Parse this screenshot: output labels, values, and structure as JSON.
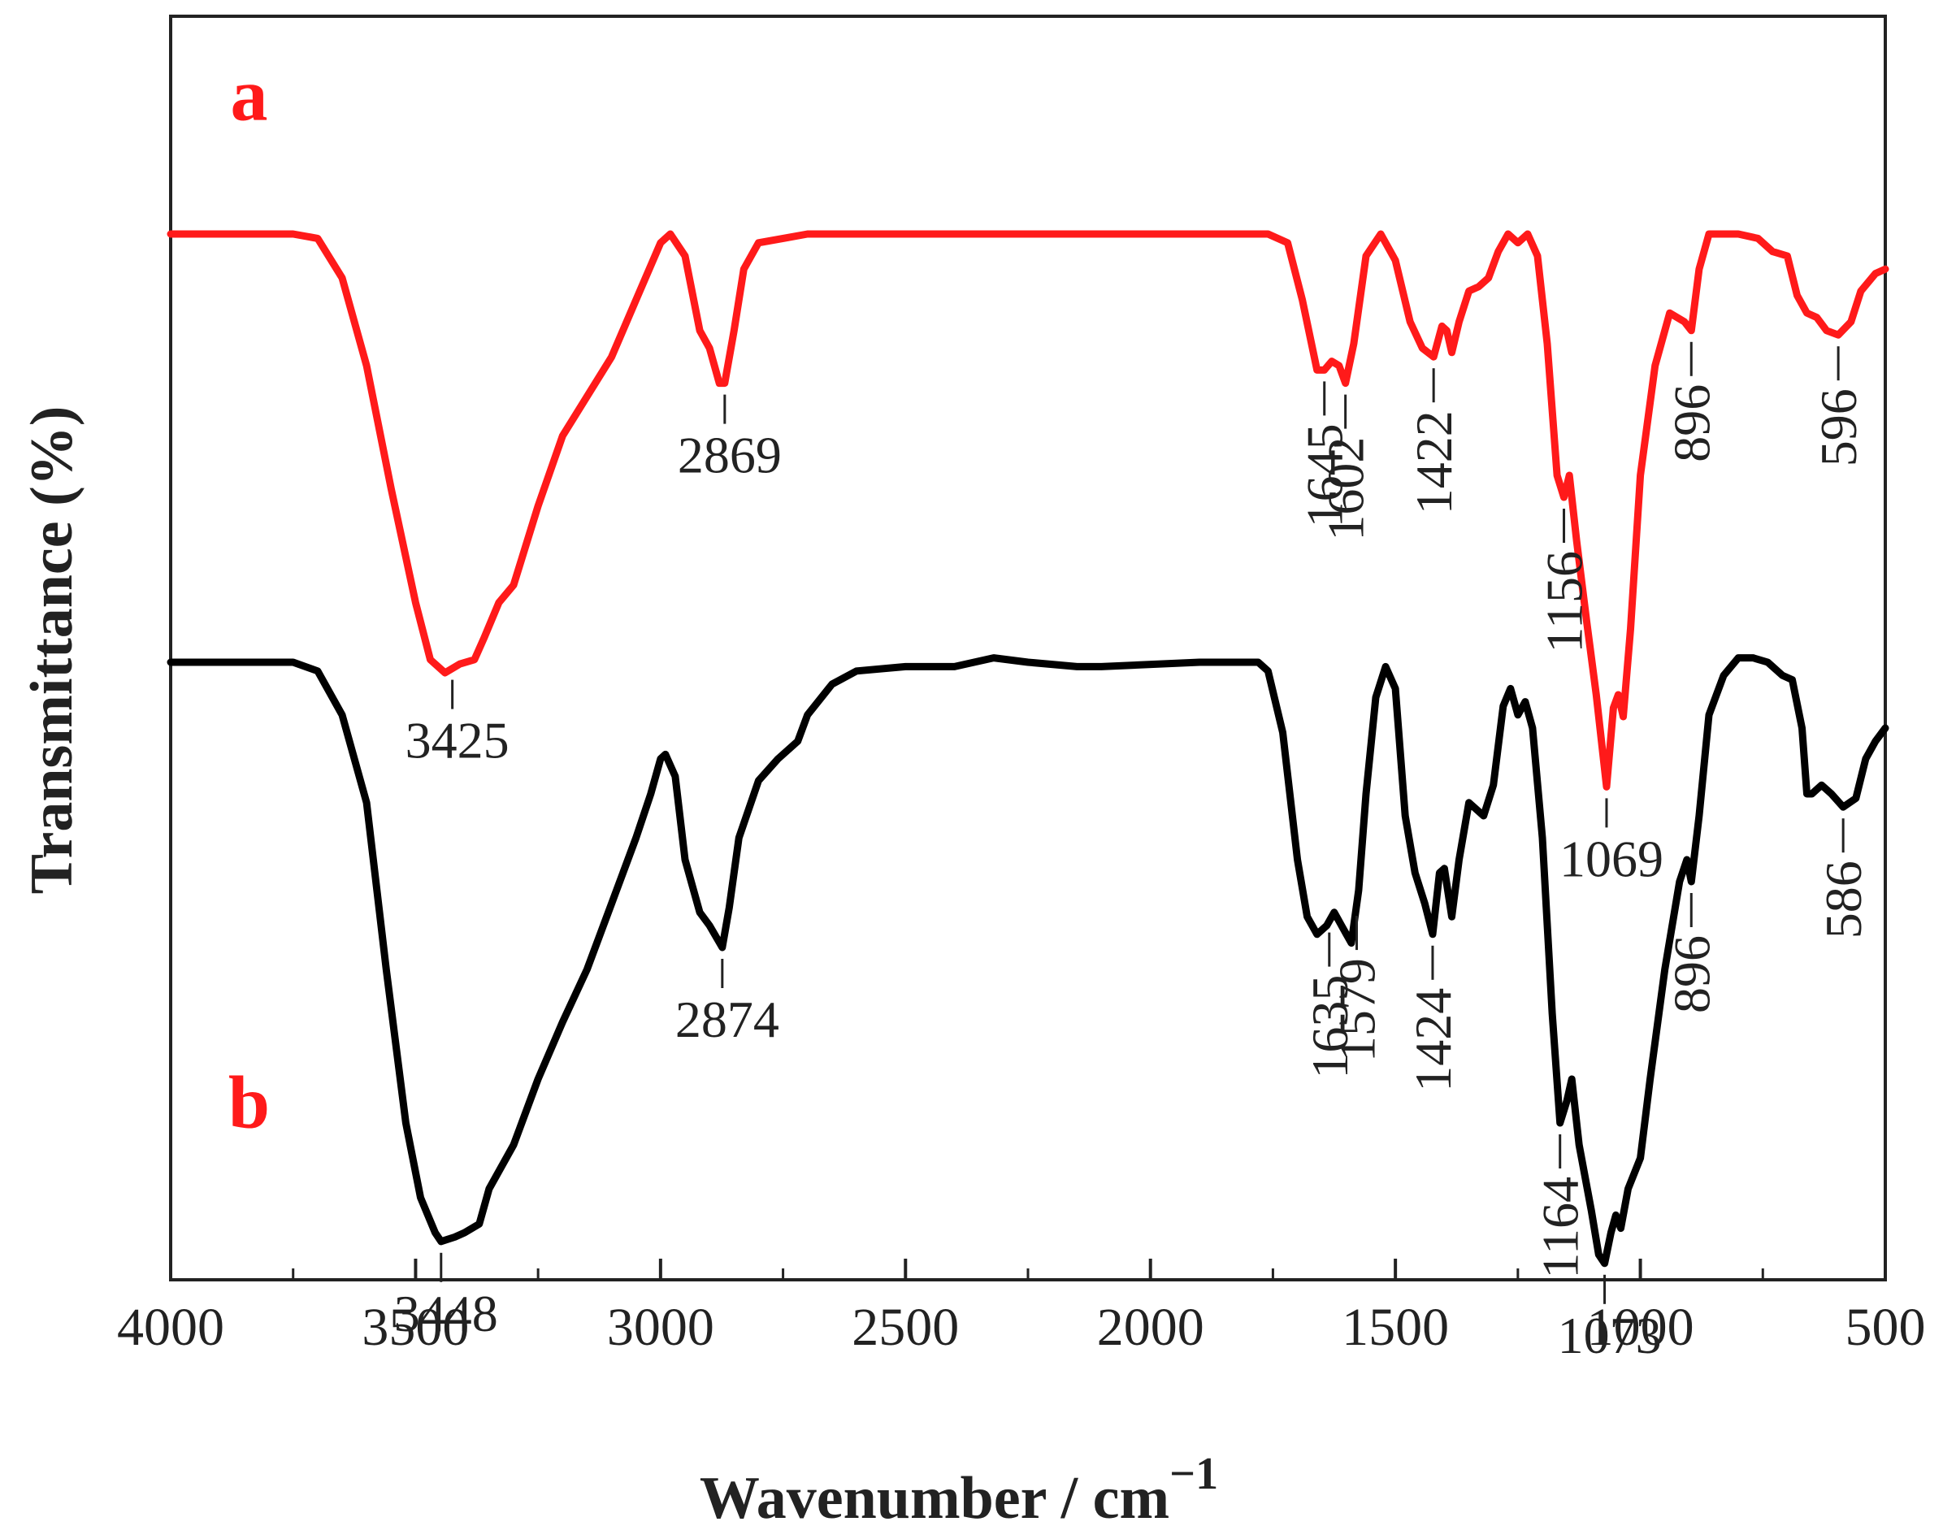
{
  "chart_data": {
    "type": "line",
    "title": "",
    "xlabel": "Wavenumber / cm",
    "xlabel_superscript": "−1",
    "ylabel": "Transmittance (%)",
    "xlim": [
      4000,
      500
    ],
    "x_reversed": true,
    "y_ticks_shown": false,
    "grid": false,
    "x_ticks": [
      "4000",
      "3500",
      "3000",
      "2500",
      "2000",
      "1500",
      "1000",
      "500"
    ],
    "series": [
      {
        "name": "a",
        "color": "#ff1a1a",
        "points": [
          [
            4000,
            0.0
          ],
          [
            3750,
            0.0
          ],
          [
            3700,
            -0.01
          ],
          [
            3650,
            -0.1
          ],
          [
            3600,
            -0.3
          ],
          [
            3550,
            -0.58
          ],
          [
            3500,
            -0.84
          ],
          [
            3470,
            -0.97
          ],
          [
            3440,
            -1.0
          ],
          [
            3410,
            -0.98
          ],
          [
            3380,
            -0.97
          ],
          [
            3360,
            -0.92
          ],
          [
            3330,
            -0.84
          ],
          [
            3300,
            -0.8
          ],
          [
            3250,
            -0.62
          ],
          [
            3200,
            -0.46
          ],
          [
            3100,
            -0.28
          ],
          [
            3050,
            -0.15
          ],
          [
            3000,
            -0.02
          ],
          [
            2980,
            0.0
          ],
          [
            2950,
            -0.05
          ],
          [
            2920,
            -0.22
          ],
          [
            2900,
            -0.26
          ],
          [
            2880,
            -0.34
          ],
          [
            2869,
            -0.34
          ],
          [
            2850,
            -0.22
          ],
          [
            2830,
            -0.08
          ],
          [
            2800,
            -0.02
          ],
          [
            2750,
            -0.01
          ],
          [
            2700,
            0.0
          ],
          [
            2500,
            0.0
          ],
          [
            2300,
            0.0
          ],
          [
            2100,
            0.0
          ],
          [
            1900,
            0.0
          ],
          [
            1760,
            0.0
          ],
          [
            1720,
            -0.02
          ],
          [
            1690,
            -0.15
          ],
          [
            1660,
            -0.31
          ],
          [
            1645,
            -0.31
          ],
          [
            1630,
            -0.29
          ],
          [
            1615,
            -0.3
          ],
          [
            1602,
            -0.34
          ],
          [
            1585,
            -0.25
          ],
          [
            1560,
            -0.05
          ],
          [
            1530,
            0.0
          ],
          [
            1500,
            -0.06
          ],
          [
            1470,
            -0.2
          ],
          [
            1445,
            -0.26
          ],
          [
            1422,
            -0.28
          ],
          [
            1405,
            -0.21
          ],
          [
            1395,
            -0.22
          ],
          [
            1385,
            -0.27
          ],
          [
            1370,
            -0.2
          ],
          [
            1350,
            -0.13
          ],
          [
            1330,
            -0.12
          ],
          [
            1310,
            -0.1
          ],
          [
            1290,
            -0.04
          ],
          [
            1270,
            0.0
          ],
          [
            1250,
            -0.02
          ],
          [
            1230,
            0.0
          ],
          [
            1210,
            -0.05
          ],
          [
            1190,
            -0.25
          ],
          [
            1170,
            -0.55
          ],
          [
            1156,
            -0.6
          ],
          [
            1145,
            -0.55
          ],
          [
            1130,
            -0.7
          ],
          [
            1110,
            -0.88
          ],
          [
            1090,
            -1.05
          ],
          [
            1069,
            -1.26
          ],
          [
            1055,
            -1.08
          ],
          [
            1045,
            -1.05
          ],
          [
            1035,
            -1.1
          ],
          [
            1020,
            -0.9
          ],
          [
            1000,
            -0.55
          ],
          [
            970,
            -0.3
          ],
          [
            940,
            -0.18
          ],
          [
            910,
            -0.2
          ],
          [
            896,
            -0.22
          ],
          [
            880,
            -0.08
          ],
          [
            860,
            0.0
          ],
          [
            800,
            0.0
          ],
          [
            760,
            -0.01
          ],
          [
            730,
            -0.04
          ],
          [
            700,
            -0.05
          ],
          [
            680,
            -0.14
          ],
          [
            660,
            -0.18
          ],
          [
            640,
            -0.19
          ],
          [
            620,
            -0.22
          ],
          [
            596,
            -0.23
          ],
          [
            570,
            -0.2
          ],
          [
            550,
            -0.13
          ],
          [
            520,
            -0.09
          ],
          [
            500,
            -0.08
          ]
        ]
      },
      {
        "name": "b",
        "color": "#000000",
        "points": [
          [
            4000,
            0.0
          ],
          [
            3750,
            0.0
          ],
          [
            3700,
            -0.02
          ],
          [
            3650,
            -0.12
          ],
          [
            3600,
            -0.32
          ],
          [
            3560,
            -0.7
          ],
          [
            3520,
            -1.05
          ],
          [
            3490,
            -1.22
          ],
          [
            3460,
            -1.3
          ],
          [
            3448,
            -1.32
          ],
          [
            3420,
            -1.31
          ],
          [
            3400,
            -1.3
          ],
          [
            3370,
            -1.28
          ],
          [
            3350,
            -1.2
          ],
          [
            3300,
            -1.1
          ],
          [
            3250,
            -0.95
          ],
          [
            3200,
            -0.82
          ],
          [
            3150,
            -0.7
          ],
          [
            3100,
            -0.55
          ],
          [
            3050,
            -0.4
          ],
          [
            3020,
            -0.3
          ],
          [
            3000,
            -0.22
          ],
          [
            2990,
            -0.21
          ],
          [
            2970,
            -0.26
          ],
          [
            2950,
            -0.45
          ],
          [
            2920,
            -0.57
          ],
          [
            2900,
            -0.6
          ],
          [
            2874,
            -0.65
          ],
          [
            2860,
            -0.56
          ],
          [
            2840,
            -0.4
          ],
          [
            2800,
            -0.27
          ],
          [
            2760,
            -0.22
          ],
          [
            2720,
            -0.18
          ],
          [
            2700,
            -0.12
          ],
          [
            2650,
            -0.05
          ],
          [
            2600,
            -0.02
          ],
          [
            2500,
            -0.01
          ],
          [
            2400,
            -0.01
          ],
          [
            2320,
            0.01
          ],
          [
            2250,
            0.0
          ],
          [
            2150,
            -0.01
          ],
          [
            2100,
            -0.01
          ],
          [
            1900,
            0.0
          ],
          [
            1780,
            0.0
          ],
          [
            1760,
            -0.02
          ],
          [
            1730,
            -0.16
          ],
          [
            1700,
            -0.45
          ],
          [
            1680,
            -0.58
          ],
          [
            1660,
            -0.62
          ],
          [
            1640,
            -0.6
          ],
          [
            1625,
            -0.57
          ],
          [
            1610,
            -0.6
          ],
          [
            1590,
            -0.64
          ],
          [
            1575,
            -0.52
          ],
          [
            1560,
            -0.3
          ],
          [
            1540,
            -0.08
          ],
          [
            1520,
            -0.01
          ],
          [
            1500,
            -0.06
          ],
          [
            1480,
            -0.35
          ],
          [
            1460,
            -0.48
          ],
          [
            1440,
            -0.55
          ],
          [
            1424,
            -0.62
          ],
          [
            1410,
            -0.48
          ],
          [
            1400,
            -0.47
          ],
          [
            1385,
            -0.58
          ],
          [
            1370,
            -0.45
          ],
          [
            1350,
            -0.32
          ],
          [
            1320,
            -0.35
          ],
          [
            1300,
            -0.28
          ],
          [
            1280,
            -0.1
          ],
          [
            1265,
            -0.06
          ],
          [
            1250,
            -0.12
          ],
          [
            1235,
            -0.09
          ],
          [
            1220,
            -0.15
          ],
          [
            1200,
            -0.4
          ],
          [
            1180,
            -0.8
          ],
          [
            1164,
            -1.05
          ],
          [
            1150,
            -1.0
          ],
          [
            1140,
            -0.95
          ],
          [
            1125,
            -1.1
          ],
          [
            1100,
            -1.25
          ],
          [
            1085,
            -1.35
          ],
          [
            1073,
            -1.37
          ],
          [
            1060,
            -1.3
          ],
          [
            1050,
            -1.26
          ],
          [
            1040,
            -1.29
          ],
          [
            1025,
            -1.2
          ],
          [
            1000,
            -1.13
          ],
          [
            980,
            -0.95
          ],
          [
            950,
            -0.7
          ],
          [
            920,
            -0.5
          ],
          [
            905,
            -0.45
          ],
          [
            896,
            -0.5
          ],
          [
            880,
            -0.35
          ],
          [
            860,
            -0.12
          ],
          [
            830,
            -0.03
          ],
          [
            800,
            0.01
          ],
          [
            770,
            0.01
          ],
          [
            740,
            0.0
          ],
          [
            710,
            -0.03
          ],
          [
            690,
            -0.04
          ],
          [
            670,
            -0.15
          ],
          [
            660,
            -0.3
          ],
          [
            650,
            -0.3
          ],
          [
            630,
            -0.28
          ],
          [
            610,
            -0.3
          ],
          [
            586,
            -0.33
          ],
          [
            560,
            -0.31
          ],
          [
            540,
            -0.22
          ],
          [
            520,
            -0.18
          ],
          [
            500,
            -0.15
          ]
        ]
      }
    ],
    "series_labels": [
      {
        "text": "a",
        "color": "#ff1a1a",
        "x": 3840,
        "y": 0.26
      },
      {
        "text": "b",
        "color": "#ff1a1a",
        "x": 3840,
        "y": -1.06
      }
    ],
    "annotations": [
      {
        "series": "a",
        "x": 3425,
        "text": "3425",
        "orient": "h"
      },
      {
        "series": "a",
        "x": 2869,
        "text": "2869",
        "orient": "h"
      },
      {
        "series": "a",
        "x": 1645,
        "text": "1645",
        "orient": "v"
      },
      {
        "series": "a",
        "x": 1602,
        "text": "1602",
        "orient": "v"
      },
      {
        "series": "a",
        "x": 1422,
        "text": "1422",
        "orient": "v"
      },
      {
        "series": "a",
        "x": 1156,
        "text": "1156",
        "orient": "v"
      },
      {
        "series": "a",
        "x": 1069,
        "text": "1069",
        "orient": "h"
      },
      {
        "series": "a",
        "x": 896,
        "text": "896",
        "orient": "v"
      },
      {
        "series": "a",
        "x": 596,
        "text": "596",
        "orient": "v"
      },
      {
        "series": "b",
        "x": 3448,
        "text": "3448",
        "orient": "h"
      },
      {
        "series": "b",
        "x": 2874,
        "text": "2874",
        "orient": "h"
      },
      {
        "series": "b",
        "x": 1635,
        "text": "1635",
        "orient": "v"
      },
      {
        "series": "b",
        "x": 1579,
        "text": "1579",
        "orient": "v"
      },
      {
        "series": "b",
        "x": 1424,
        "text": "1424",
        "orient": "v"
      },
      {
        "series": "b",
        "x": 1164,
        "text": "1164",
        "orient": "v"
      },
      {
        "series": "b",
        "x": 1073,
        "text": "1073",
        "orient": "h"
      },
      {
        "series": "b",
        "x": 896,
        "text": "896",
        "orient": "v"
      },
      {
        "series": "b",
        "x": 586,
        "text": "586",
        "orient": "v"
      }
    ]
  }
}
